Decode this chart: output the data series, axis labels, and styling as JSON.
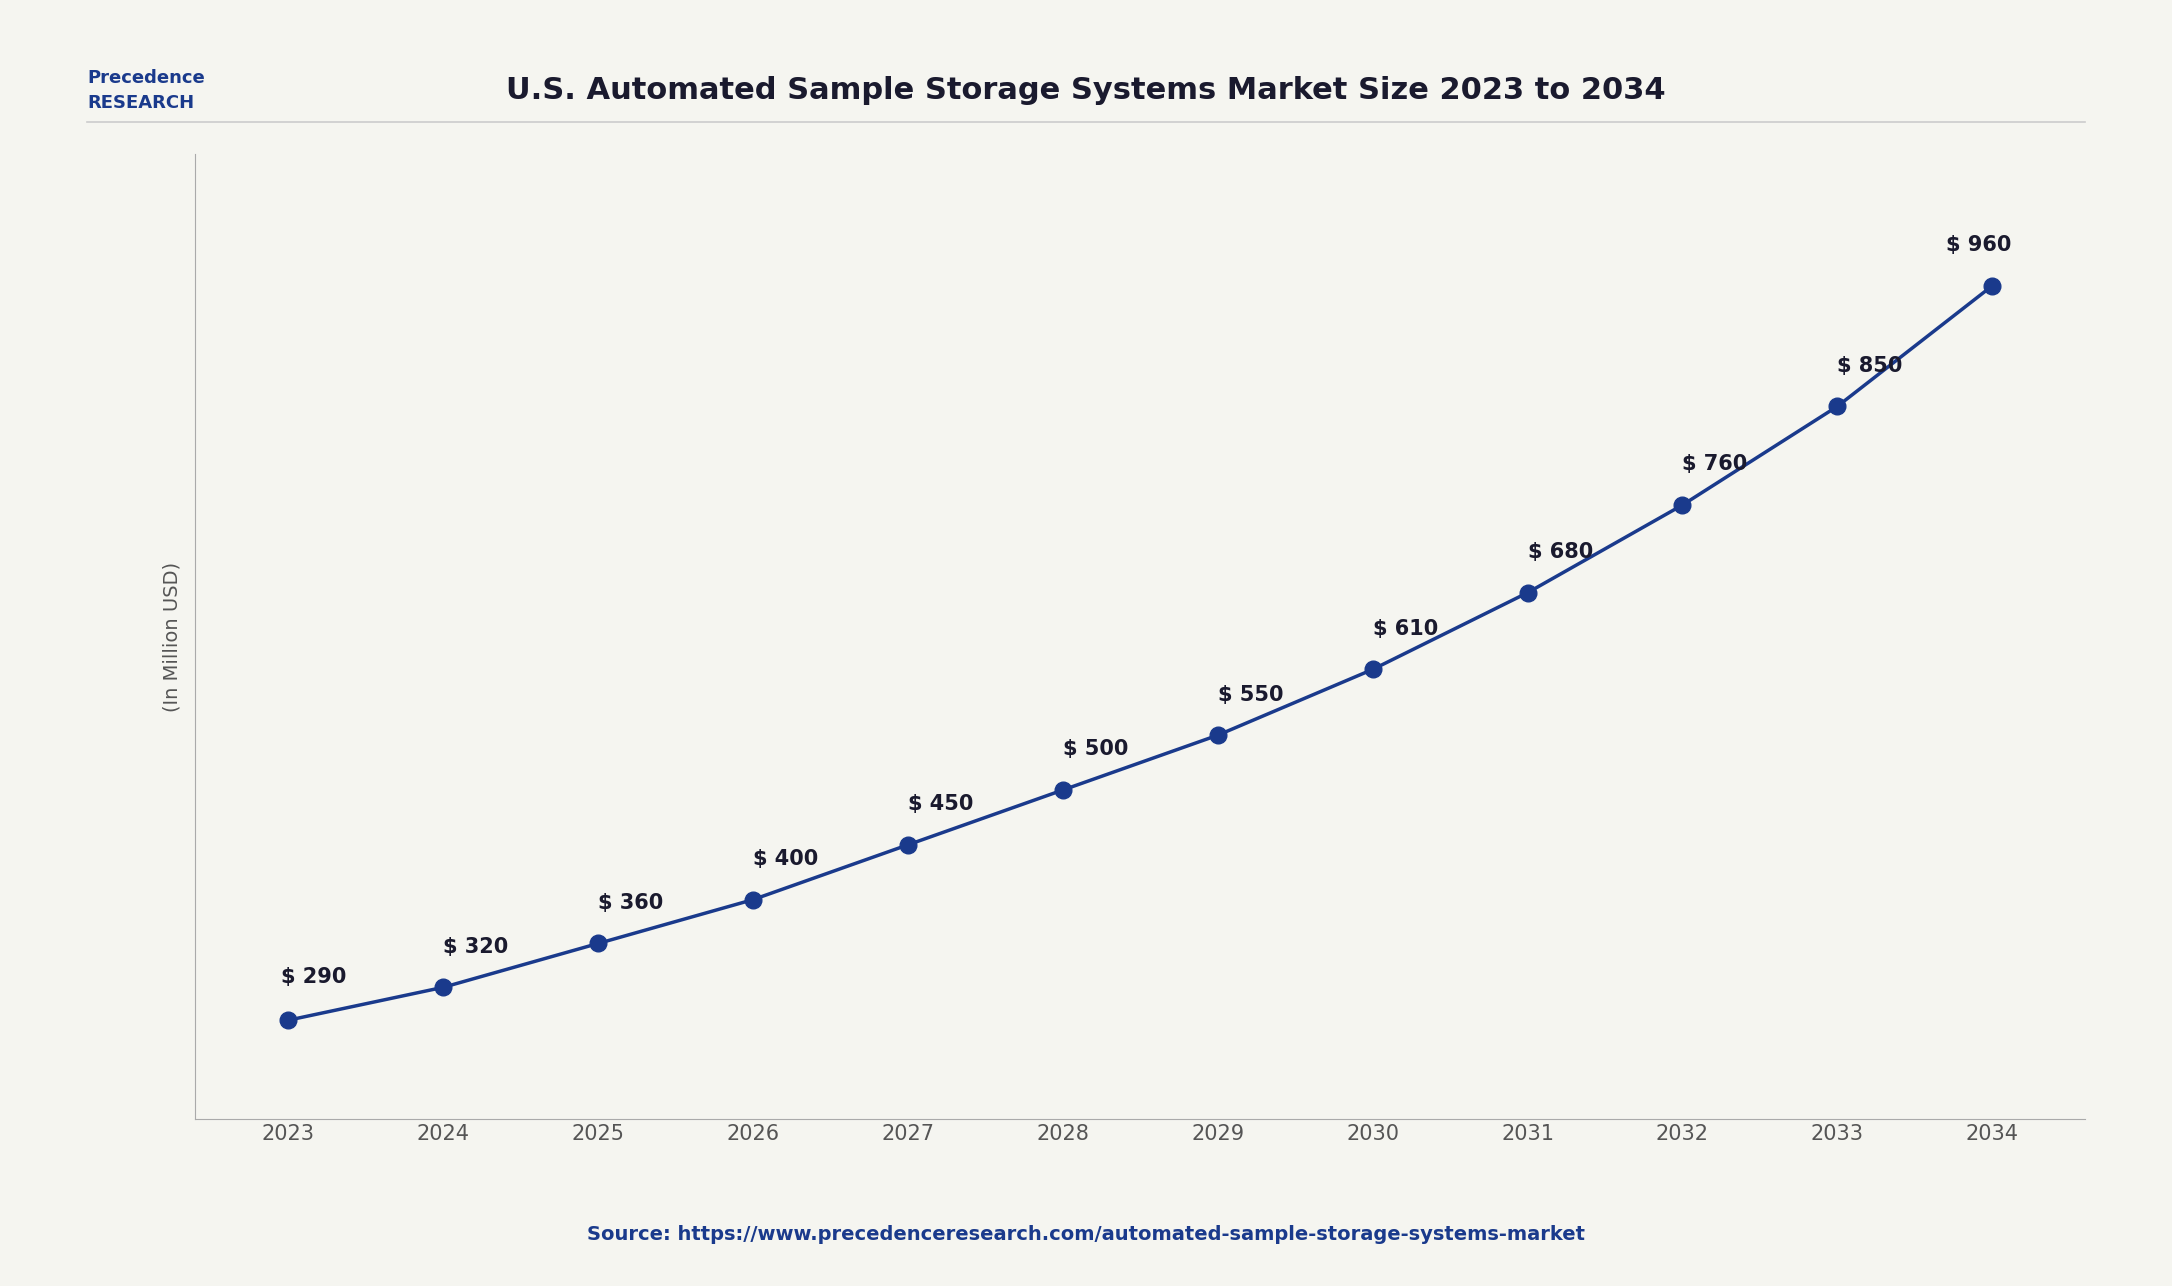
{
  "title": "U.S. Automated Sample Storage Systems Market Size 2023 to 2034",
  "ylabel": "(In Million USD)",
  "source": "Source: https://www.precedenceresearch.com/automated-sample-storage-systems-market",
  "years": [
    2023,
    2024,
    2025,
    2026,
    2027,
    2028,
    2029,
    2030,
    2031,
    2032,
    2033,
    2034
  ],
  "values": [
    290,
    320,
    360,
    400,
    450,
    500,
    550,
    610,
    680,
    760,
    850,
    960
  ],
  "labels": [
    "$ 290",
    "$ 320",
    "$ 360",
    "$ 400",
    "$ 450",
    "$ 500",
    "$ 550",
    "$ 610",
    "$ 680",
    "$ 760",
    "$ 850",
    "$ 960"
  ],
  "line_color": "#1a3a8c",
  "marker_color": "#1a3a8c",
  "bg_color": "#f5f5f0",
  "plot_bg_color": "#f5f5f0",
  "title_color": "#1a1a2e",
  "label_color": "#1a1a2e",
  "source_color": "#1a3a8c",
  "axis_color": "#555555",
  "title_fontsize": 22,
  "label_fontsize": 15,
  "tick_fontsize": 15,
  "source_fontsize": 14,
  "ylabel_fontsize": 14,
  "marker_size": 12,
  "line_width": 2.5
}
